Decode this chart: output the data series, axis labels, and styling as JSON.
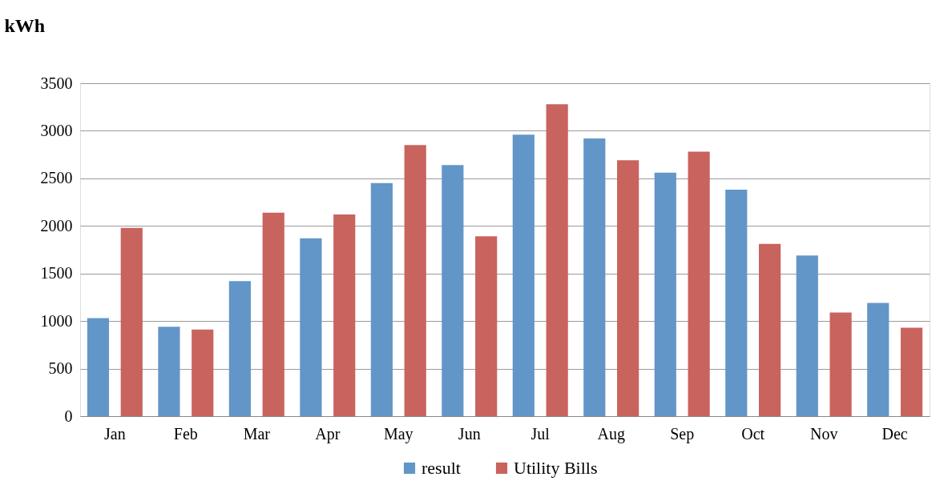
{
  "chart_data": {
    "type": "bar",
    "ylabel": "kWh",
    "categories": [
      "Jan",
      "Feb",
      "Mar",
      "Apr",
      "May",
      "Jun",
      "Jul",
      "Aug",
      "Sep",
      "Oct",
      "Nov",
      "Dec"
    ],
    "series": [
      {
        "name": "result",
        "color": "#6396c8",
        "values": [
          1030,
          940,
          1420,
          1870,
          2450,
          2640,
          2960,
          2920,
          2560,
          2380,
          1690,
          1190
        ]
      },
      {
        "name": "Utility Bills",
        "color": "#c9635d",
        "values": [
          1980,
          910,
          2140,
          2120,
          2850,
          1890,
          3280,
          2690,
          2780,
          1810,
          1090,
          930
        ]
      }
    ],
    "ylim": [
      0,
      3500
    ],
    "yticks": [
      0,
      500,
      1000,
      1500,
      2000,
      2500,
      3000,
      3500
    ],
    "grid": "y",
    "legend": "bottom"
  }
}
